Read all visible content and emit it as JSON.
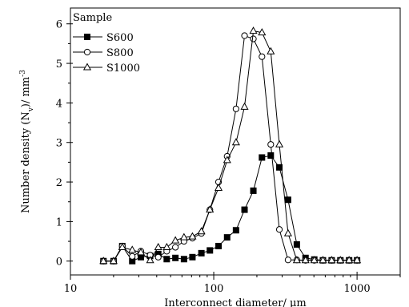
{
  "chart_data": {
    "type": "line",
    "x_scale": "log",
    "xlim": [
      10,
      2000
    ],
    "ylim": [
      -0.35,
      6.4
    ],
    "x_ticks": [
      10,
      100,
      1000
    ],
    "x_tick_labels": [
      "10",
      "100",
      "1000"
    ],
    "y_ticks": [
      0,
      1,
      2,
      3,
      4,
      5,
      6
    ],
    "y_tick_labels": [
      "0",
      "1",
      "2",
      "3",
      "4",
      "5",
      "6"
    ],
    "xlabel": "Interconnect diameter/ μm",
    "ylabel_parts": {
      "main": "Number density (N",
      "sub": "v",
      "mid": ")/ mm",
      "sup": "-3"
    },
    "legend": {
      "title": "Sample",
      "position": "top-left"
    },
    "series": [
      {
        "name": "S600",
        "marker": "filled-square",
        "x": [
          17,
          20,
          23,
          27,
          31,
          36,
          41,
          47,
          54,
          62,
          71,
          82,
          94,
          108,
          124,
          143,
          164,
          189,
          217,
          250,
          287,
          330,
          380,
          437,
          503,
          578,
          665,
          765,
          880,
          1000
        ],
        "y": [
          0,
          0,
          0.38,
          0,
          0.1,
          0.13,
          0.18,
          0.05,
          0.08,
          0.05,
          0.1,
          0.2,
          0.27,
          0.38,
          0.6,
          0.78,
          1.3,
          1.78,
          2.62,
          2.67,
          2.37,
          1.55,
          0.42,
          0.08,
          0.04,
          0.02,
          0.02,
          0.02,
          0.02,
          0.02
        ]
      },
      {
        "name": "S800",
        "marker": "open-circle",
        "x": [
          17,
          20,
          23,
          27,
          31,
          36,
          41,
          47,
          54,
          62,
          71,
          82,
          94,
          108,
          124,
          143,
          164,
          189,
          217,
          250,
          287,
          330,
          380,
          437,
          503,
          578,
          665,
          765,
          880,
          1000
        ],
        "y": [
          0,
          0,
          0.38,
          0.12,
          0.25,
          0.15,
          0.1,
          0.25,
          0.35,
          0.5,
          0.58,
          0.7,
          1.3,
          2.0,
          2.65,
          3.85,
          5.7,
          5.62,
          5.17,
          2.95,
          0.8,
          0.03,
          0.03,
          0.02,
          0.02,
          0.02,
          0.02,
          0.02,
          0.02,
          0.02
        ]
      },
      {
        "name": "S1000",
        "marker": "open-triangle",
        "x": [
          17,
          20,
          23,
          27,
          31,
          36,
          41,
          47,
          54,
          62,
          71,
          82,
          94,
          108,
          124,
          143,
          164,
          189,
          217,
          250,
          287,
          330,
          380,
          437,
          503,
          578,
          665,
          765,
          880,
          1000
        ],
        "y": [
          0,
          0,
          0.35,
          0.28,
          0.22,
          0.02,
          0.35,
          0.35,
          0.52,
          0.6,
          0.62,
          0.75,
          1.3,
          1.85,
          2.55,
          3.0,
          3.9,
          5.82,
          5.78,
          5.3,
          2.95,
          0.7,
          0.02,
          0.02,
          0.02,
          0.02,
          0.02,
          0.02,
          0.02,
          0.02
        ]
      }
    ]
  }
}
